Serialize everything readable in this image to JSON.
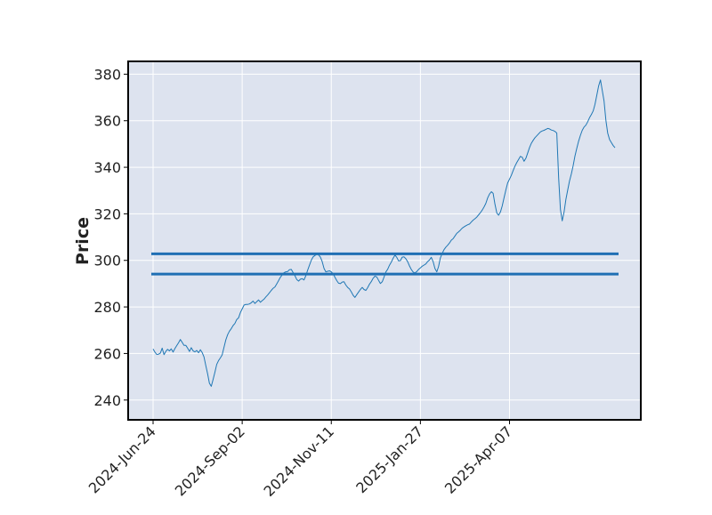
{
  "chart_data": {
    "type": "line",
    "title": "",
    "xlabel": "",
    "ylabel": "Price",
    "grid": true,
    "legend": "none",
    "colors": {
      "plot_background": "#dde3ef",
      "grid": "#ffffff",
      "price_line": "#1f77b4",
      "level_line": "#1f6fb4",
      "frame": "#000000"
    },
    "x_ticks": [
      "2024-Jun-24",
      "2024-Sep-02",
      "2024-Nov-11",
      "2025-Jan-27",
      "2025-Apr-07"
    ],
    "x_tick_bar_index": [
      0,
      49,
      98,
      147,
      196
    ],
    "ylim": [
      231.5,
      385.5
    ],
    "y_ticks": [
      240,
      260,
      280,
      300,
      320,
      340,
      360,
      380
    ],
    "series": [
      {
        "values": [
          261.9,
          260.6,
          259.6,
          259.7,
          260.2,
          262.3,
          259.5,
          260.9,
          261.8,
          261.1,
          262.0,
          260.6,
          262.1,
          263.4,
          264.6,
          266.0,
          264.8,
          263.5,
          263.5,
          262.3,
          260.9,
          262.5,
          261.1,
          260.7,
          261.3,
          260.3,
          261.6,
          260.4,
          258.5,
          254.7,
          251.2,
          247.2,
          245.9,
          248.8,
          252.0,
          255.3,
          257.0,
          258.1,
          259.4,
          262.7,
          265.8,
          268.1,
          269.6,
          270.7,
          272.0,
          272.9,
          274.6,
          275.3,
          277.6,
          279.1,
          280.8,
          281.1,
          281.1,
          281.3,
          281.8,
          282.5,
          281.5,
          282.3,
          283.0,
          282.0,
          282.7,
          283.3,
          284.3,
          285.1,
          286.1,
          287.1,
          288.0,
          288.6,
          289.9,
          291.3,
          292.7,
          293.8,
          294.7,
          295.1,
          295.2,
          296.0,
          296.1,
          294.8,
          293.4,
          291.8,
          291.1,
          291.9,
          292.1,
          291.6,
          293.4,
          295.8,
          297.9,
          300.1,
          301.5,
          302.1,
          302.6,
          302.4,
          301.4,
          299.5,
          296.5,
          295.1,
          295.3,
          295.5,
          295.1,
          294.3,
          292.8,
          291.3,
          290.2,
          290.0,
          290.7,
          290.8,
          289.4,
          288.4,
          287.7,
          286.5,
          285.0,
          284.1,
          285.3,
          286.4,
          287.5,
          288.4,
          287.5,
          287.1,
          288.3,
          289.8,
          290.9,
          292.3,
          293.2,
          292.9,
          291.4,
          290.1,
          290.8,
          292.8,
          295.0,
          296.2,
          297.9,
          299.3,
          300.9,
          302.3,
          301.3,
          299.8,
          299.9,
          301.4,
          301.5,
          300.7,
          299.4,
          297.6,
          296.1,
          295.0,
          294.6,
          295.2,
          296.1,
          296.8,
          297.5,
          298.0,
          298.5,
          299.5,
          300.2,
          301.3,
          299.4,
          296.5,
          295.1,
          297.4,
          301.1,
          303.0,
          304.6,
          305.7,
          306.5,
          307.5,
          308.7,
          309.3,
          310.5,
          311.6,
          312.3,
          313.0,
          313.9,
          314.4,
          314.9,
          315.3,
          315.6,
          316.5,
          317.3,
          317.9,
          318.6,
          319.6,
          320.5,
          321.6,
          323.0,
          324.5,
          326.9,
          328.5,
          329.5,
          328.8,
          324.2,
          320.4,
          319.4,
          320.8,
          323.4,
          327.0,
          330.3,
          333.3,
          334.9,
          336.5,
          338.6,
          340.5,
          342.1,
          343.4,
          344.7,
          344.3,
          342.6,
          343.9,
          346.1,
          348.5,
          350.3,
          351.6,
          352.7,
          353.5,
          354.4,
          355.2,
          355.6,
          355.9,
          356.3,
          356.7,
          356.5,
          356.0,
          355.8,
          355.4,
          354.7,
          335.4,
          321.9,
          317.0,
          320.8,
          326.1,
          330.3,
          334.1,
          337.2,
          340.7,
          344.8,
          348.2,
          351.2,
          353.8,
          355.9,
          357.3,
          358.1,
          359.6,
          361.3,
          362.6,
          364.2,
          367.0,
          371.0,
          374.9,
          377.5,
          373.0,
          368.5,
          360.1,
          354.7,
          351.9,
          350.6,
          349.3,
          348.4
        ]
      }
    ],
    "levels": [
      {
        "value": 302.8
      },
      {
        "value": 294.1
      }
    ]
  }
}
